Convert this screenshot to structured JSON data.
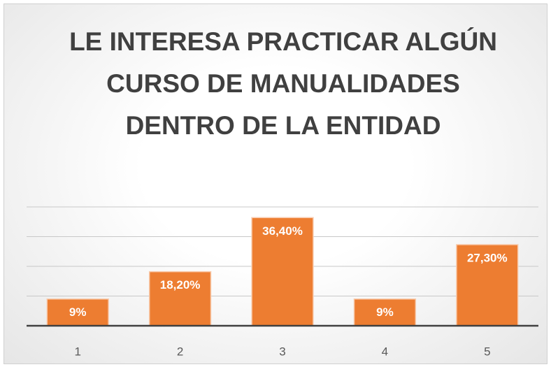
{
  "chart_data": {
    "type": "bar",
    "title": "LE INTERESA PRACTICAR ALGÚN CURSO DE MANUALIDADES DENTRO DE LA ENTIDAD",
    "categories": [
      "1",
      "2",
      "3",
      "4",
      "5"
    ],
    "values": [
      9,
      18.2,
      36.4,
      9,
      27.3
    ],
    "value_labels": [
      "9%",
      "18,20%",
      "36,40%",
      "9%",
      "27,30%"
    ],
    "color": "#ed7d31",
    "ylim": [
      0,
      40
    ],
    "yticks": [
      0,
      10,
      20,
      30,
      40
    ],
    "grid": true
  }
}
